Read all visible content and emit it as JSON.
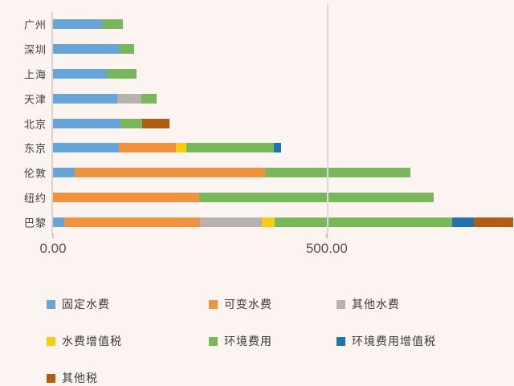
{
  "background_color": "#FBF4F0",
  "axis_line_color": "#D9D2CE",
  "gridline_color": "#DFDAD6",
  "tick_color": "#C9C3BF",
  "label_color": "#3E3E3E",
  "axis_number_color": "#57524E",
  "chart_data": {
    "type": "bar",
    "variant": "horizontal-stacked",
    "title": "",
    "xlabel": "",
    "ylabel": "",
    "grid": "single-vertical-gridline-at-500",
    "legend_position": "bottom",
    "categories": [
      "广州",
      "深圳",
      "上海",
      "天津",
      "北京",
      "东京",
      "伦敦",
      "纽约",
      "巴黎"
    ],
    "series": [
      {
        "name": "固定水费",
        "color": "#67A5D8",
        "values": [
          90,
          122,
          99,
          118,
          123,
          120,
          40,
          0,
          21
        ]
      },
      {
        "name": "可变水费",
        "color": "#F0933C",
        "values": [
          0,
          0,
          0,
          0,
          0,
          104,
          347,
          267,
          247
        ]
      },
      {
        "name": "其他水费",
        "color": "#B5B2AF",
        "values": [
          0,
          0,
          0,
          43,
          0,
          0,
          0,
          0,
          114
        ]
      },
      {
        "name": "水费增值税",
        "color": "#FCCB12",
        "values": [
          0,
          0,
          0,
          0,
          0,
          19,
          0,
          0,
          23
        ]
      },
      {
        "name": "环境费用",
        "color": "#79B75C",
        "values": [
          37,
          26,
          53,
          28,
          40,
          160,
          266,
          429,
          324
        ]
      },
      {
        "name": "环境费用增值税",
        "color": "#2173AF",
        "values": [
          0,
          0,
          0,
          0,
          0,
          13,
          0,
          0,
          40
        ]
      },
      {
        "name": "其他税",
        "color": "#B05C13",
        "values": [
          0,
          0,
          0,
          0,
          49,
          0,
          0,
          0,
          72
        ]
      }
    ],
    "x_axis": {
      "min": 0,
      "max": 842,
      "ticks": [
        {
          "value": 0,
          "label": "0.00"
        },
        {
          "value": 500,
          "label": "500.00"
        }
      ],
      "gridlines": [
        500
      ]
    }
  }
}
